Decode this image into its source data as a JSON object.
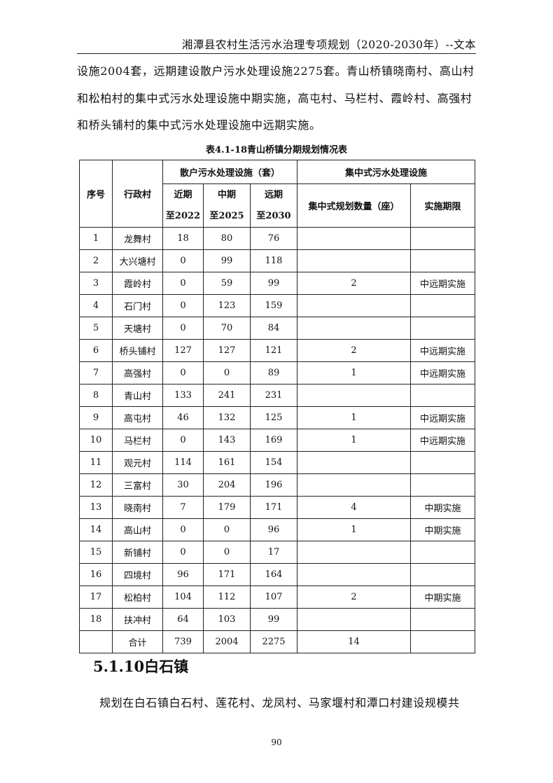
{
  "header": "湘潭县农村生活污水治理专项规划（2020-2030年）--文本",
  "paragraph1": "设施2004套，远期建设散户污水处理设施2275套。青山桥镇晓南村、高山村和松柏村的集中式污水处理设施中期实施，高屯村、马栏村、霞岭村、高强村和桥头铺村的集中式污水处理设施中远期实施。",
  "table": {
    "caption": "表4.1-18青山桥镇分期规划情况表",
    "headers": {
      "no": "序号",
      "village": "行政村",
      "scattered": "散户污水处理设施（套）",
      "central": "集中式污水处理设施",
      "near": "近期",
      "near_sub": "至2022",
      "mid": "中期",
      "mid_sub": "至2025",
      "far": "远期",
      "far_sub": "至2030",
      "count": "集中式规划数量（座）",
      "period": "实施期限"
    },
    "rows": [
      [
        "1",
        "龙舞村",
        "18",
        "80",
        "76",
        "",
        ""
      ],
      [
        "2",
        "大兴塘村",
        "0",
        "99",
        "118",
        "",
        ""
      ],
      [
        "3",
        "霞岭村",
        "0",
        "59",
        "99",
        "2",
        "中远期实施"
      ],
      [
        "4",
        "石门村",
        "0",
        "123",
        "159",
        "",
        ""
      ],
      [
        "5",
        "天塘村",
        "0",
        "70",
        "84",
        "",
        ""
      ],
      [
        "6",
        "桥头铺村",
        "127",
        "127",
        "121",
        "2",
        "中远期实施"
      ],
      [
        "7",
        "高强村",
        "0",
        "0",
        "89",
        "1",
        "中远期实施"
      ],
      [
        "8",
        "青山村",
        "133",
        "241",
        "231",
        "",
        ""
      ],
      [
        "9",
        "高屯村",
        "46",
        "132",
        "125",
        "1",
        "中远期实施"
      ],
      [
        "10",
        "马栏村",
        "0",
        "143",
        "169",
        "1",
        "中远期实施"
      ],
      [
        "11",
        "观元村",
        "114",
        "161",
        "154",
        "",
        ""
      ],
      [
        "12",
        "三富村",
        "30",
        "204",
        "196",
        "",
        ""
      ],
      [
        "13",
        "晓南村",
        "7",
        "179",
        "171",
        "4",
        "中期实施"
      ],
      [
        "14",
        "高山村",
        "0",
        "0",
        "96",
        "1",
        "中期实施"
      ],
      [
        "15",
        "新铺村",
        "0",
        "0",
        "17",
        "",
        ""
      ],
      [
        "16",
        "四境村",
        "96",
        "171",
        "164",
        "",
        ""
      ],
      [
        "17",
        "松柏村",
        "104",
        "112",
        "107",
        "2",
        "中期实施"
      ],
      [
        "18",
        "扶冲村",
        "64",
        "103",
        "99",
        "",
        ""
      ],
      [
        "",
        "合计",
        "739",
        "2004",
        "2275",
        "14",
        ""
      ]
    ]
  },
  "section_heading": "5.1.10白石镇",
  "paragraph2": "规划在白石镇白石村、莲花村、龙凤村、马家堰村和潭口村建设规模共",
  "page_number": "90"
}
